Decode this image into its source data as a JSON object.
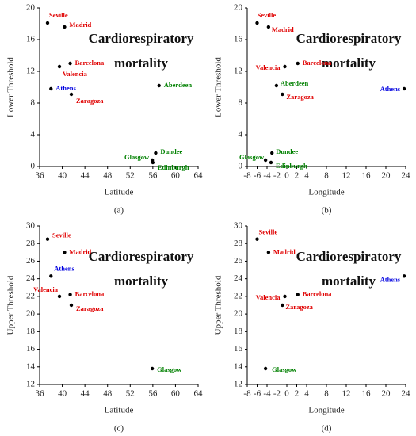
{
  "chart_data": [
    {
      "type": "scatter",
      "caption": "(a)",
      "xlabel": "Latitude",
      "ylabel": "Lower Threshold",
      "annotation": [
        "Cardiorespiratory",
        "mortality"
      ],
      "point_labels": [
        "Seville",
        "Madrid",
        "Barcelona",
        "Valencia",
        "Athens",
        "Zaragoza",
        "Aberdeen",
        "Dundee",
        "Glasgow",
        "Edinburgh"
      ],
      "colors": [
        "#e00000",
        "#e00000",
        "#e00000",
        "#e00000",
        "#0000e0",
        "#e00000",
        "#008000",
        "#008000",
        "#008000",
        "#008000"
      ],
      "x": [
        37.4,
        40.4,
        41.4,
        39.5,
        38.0,
        41.6,
        57.1,
        56.5,
        55.9,
        56.0
      ],
      "values": [
        18.1,
        17.6,
        13.0,
        12.6,
        9.8,
        9.1,
        10.2,
        1.7,
        0.8,
        0.5
      ],
      "xlim": [
        36,
        64
      ],
      "xticks": [
        36,
        40,
        44,
        48,
        52,
        56,
        60,
        64
      ],
      "ylim": [
        0,
        20
      ],
      "yticks": [
        0,
        4,
        8,
        12,
        16,
        20
      ]
    },
    {
      "type": "scatter",
      "caption": "(b)",
      "xlabel": "Longitude",
      "ylabel": "Lower Threshold",
      "annotation": [
        "Cardiorespiratory",
        "mortality"
      ],
      "point_labels": [
        "Seville",
        "Madrid",
        "Barcelona",
        "Valencia",
        "Athens",
        "Zaragoza",
        "Aberdeen",
        "Dundee",
        "Glasgow",
        "Edinburgh"
      ],
      "colors": [
        "#e00000",
        "#e00000",
        "#e00000",
        "#e00000",
        "#0000e0",
        "#e00000",
        "#008000",
        "#008000",
        "#008000",
        "#008000"
      ],
      "x": [
        -6.0,
        -3.7,
        2.2,
        -0.4,
        23.7,
        -0.9,
        -2.1,
        -3.0,
        -4.3,
        -3.2
      ],
      "values": [
        18.1,
        17.6,
        13.0,
        12.6,
        9.8,
        9.1,
        10.2,
        1.7,
        0.8,
        0.5
      ],
      "xlim": [
        -8,
        24
      ],
      "xticks": [
        -8,
        -6,
        -4,
        -2,
        0,
        2,
        4,
        8,
        12,
        16,
        20,
        24
      ],
      "ylim": [
        0,
        20
      ],
      "yticks": [
        0,
        4,
        8,
        12,
        16,
        20
      ]
    },
    {
      "type": "scatter",
      "caption": "(c)",
      "xlabel": "Latitude",
      "ylabel": "Upper Threshold",
      "annotation": [
        "Cardiorespiratory",
        "mortality"
      ],
      "point_labels": [
        "Seville",
        "Madrid",
        "Athens",
        "Valencia",
        "Barcelona",
        "Zaragoza",
        "Glasgow"
      ],
      "colors": [
        "#e00000",
        "#e00000",
        "#0000e0",
        "#e00000",
        "#e00000",
        "#e00000",
        "#008000"
      ],
      "x": [
        37.4,
        40.4,
        38.0,
        39.5,
        41.4,
        41.6,
        55.9
      ],
      "values": [
        28.5,
        27.0,
        24.3,
        22.0,
        22.2,
        21.0,
        13.8
      ],
      "xlim": [
        36,
        64
      ],
      "xticks": [
        36,
        40,
        44,
        48,
        52,
        56,
        60,
        64
      ],
      "ylim": [
        12,
        30
      ],
      "yticks": [
        12,
        14,
        16,
        18,
        20,
        22,
        24,
        26,
        28,
        30
      ]
    },
    {
      "type": "scatter",
      "caption": "(d)",
      "xlabel": "Longitude",
      "ylabel": "Upper Threshold",
      "annotation": [
        "Cardiorespiratory",
        "mortality"
      ],
      "point_labels": [
        "Seville",
        "Madrid",
        "Athens",
        "Valencia",
        "Barcelona",
        "Zaragoza",
        "Glasgow"
      ],
      "colors": [
        "#e00000",
        "#e00000",
        "#0000e0",
        "#e00000",
        "#e00000",
        "#e00000",
        "#008000"
      ],
      "x": [
        -6.0,
        -3.7,
        23.7,
        -0.4,
        2.2,
        -0.9,
        -4.3
      ],
      "values": [
        28.5,
        27.0,
        24.3,
        22.0,
        22.2,
        21.0,
        13.8
      ],
      "xlim": [
        -8,
        24
      ],
      "xticks": [
        -8,
        -6,
        -4,
        -2,
        0,
        2,
        4,
        8,
        12,
        16,
        20,
        24
      ],
      "ylim": [
        12,
        30
      ],
      "yticks": [
        12,
        14,
        16,
        18,
        20,
        22,
        24,
        26,
        28,
        30
      ]
    }
  ]
}
